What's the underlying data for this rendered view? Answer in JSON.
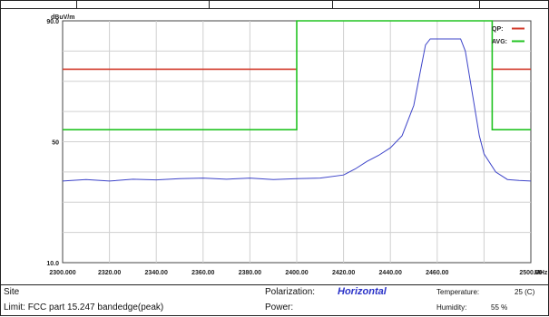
{
  "chart_data": {
    "type": "line",
    "y_unit_label": "dBuV/m",
    "x_unit_label": "MHz",
    "xlim": [
      2300,
      2500
    ],
    "ylim": [
      10,
      90
    ],
    "y_ticks": [
      {
        "value": 90,
        "label": "90.0"
      },
      {
        "value": 50,
        "label": "50"
      },
      {
        "value": 10,
        "label": "10.0"
      }
    ],
    "x_ticks": [
      {
        "value": 2300,
        "label": "2300.000"
      },
      {
        "value": 2320,
        "label": "2320.00"
      },
      {
        "value": 2340,
        "label": "2340.00"
      },
      {
        "value": 2360,
        "label": "2360.00"
      },
      {
        "value": 2380,
        "label": "2380.00"
      },
      {
        "value": 2400,
        "label": "2400.00"
      },
      {
        "value": 2420,
        "label": "2420.00"
      },
      {
        "value": 2440,
        "label": "2440.00"
      },
      {
        "value": 2460,
        "label": "2460.00"
      },
      {
        "value": 2500,
        "label": "2500.00"
      }
    ],
    "grid": true,
    "legend_position": "top-right",
    "legend": [
      {
        "label": "QP:",
        "color": "#d23a2a"
      },
      {
        "label": "AVG:",
        "color": "#22c322"
      }
    ],
    "series": [
      {
        "color": "#d23a2a",
        "x": [
          2300,
          2400,
          2400,
          2483.5,
          2483.5,
          2500
        ],
        "y": [
          74,
          74,
          null,
          null,
          74,
          74
        ]
      },
      {
        "color": "#22c322",
        "x": [
          2300,
          2400,
          2400,
          2483.5,
          2483.5,
          2500
        ],
        "y": [
          54,
          54,
          90,
          90,
          54,
          54
        ]
      },
      {
        "color": "#3d44c9",
        "x": [
          2300,
          2310,
          2320,
          2330,
          2340,
          2350,
          2360,
          2370,
          2380,
          2390,
          2400,
          2410,
          2420,
          2425,
          2430,
          2435,
          2440,
          2445,
          2450,
          2453,
          2455,
          2457,
          2460,
          2465,
          2470,
          2472,
          2475,
          2478,
          2480,
          2485,
          2490,
          2495,
          2500
        ],
        "y": [
          37,
          37.5,
          37,
          37.6,
          37.4,
          37.8,
          38,
          37.6,
          38,
          37.5,
          37.8,
          38,
          39,
          41,
          43.5,
          45.5,
          48,
          52,
          62,
          74,
          82,
          84,
          84,
          84,
          84,
          80,
          66,
          52,
          46,
          40,
          37.5,
          37.2,
          37
        ]
      }
    ]
  },
  "footer": {
    "site_label": "Site",
    "limit_label": "Limit:",
    "limit_value": "FCC part 15.247 bandedge(peak)",
    "polarization_label": "Polarization:",
    "polarization_value": "Horizontal",
    "power_label": "Power:",
    "temperature_label": "Temperature:",
    "temperature_value": "25 (C)",
    "humidity_label": "Humidity:",
    "humidity_value": "55 %"
  }
}
